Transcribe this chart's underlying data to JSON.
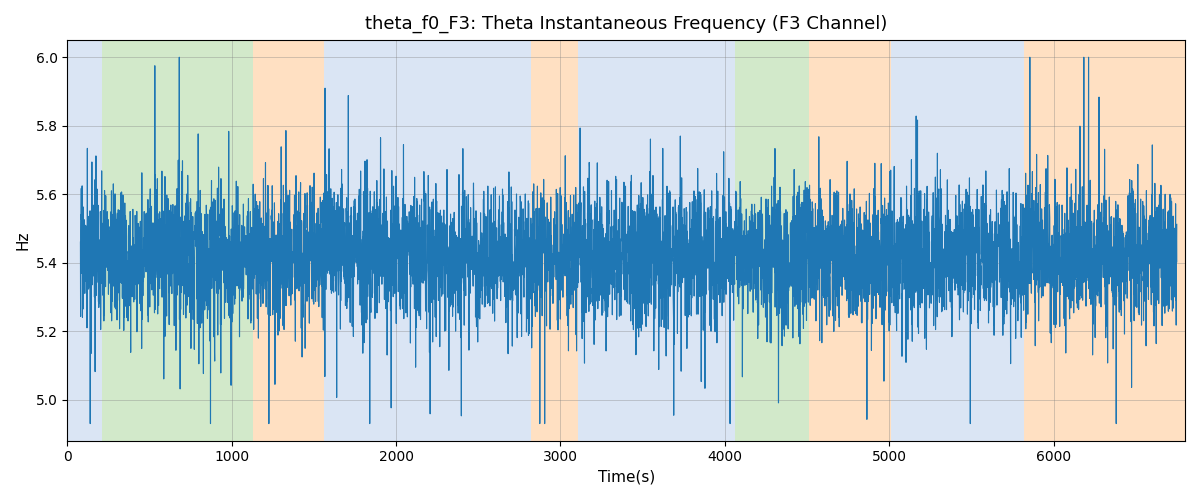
{
  "title": "theta_f0_F3: Theta Instantaneous Frequency (F3 Channel)",
  "xlabel": "Time(s)",
  "ylabel": "Hz",
  "ylim": [
    4.88,
    6.05
  ],
  "yticks": [
    5.0,
    5.2,
    5.4,
    5.6,
    5.8,
    6.0
  ],
  "xlim": [
    0,
    6800
  ],
  "xticks": [
    0,
    1000,
    2000,
    3000,
    4000,
    5000,
    6000
  ],
  "line_color": "#1f77b4",
  "line_width": 0.8,
  "bg_regions": [
    {
      "xmin": 0,
      "xmax": 210,
      "color": "#aec7e8",
      "alpha": 0.45
    },
    {
      "xmin": 210,
      "xmax": 1130,
      "color": "#90c97c",
      "alpha": 0.4
    },
    {
      "xmin": 1130,
      "xmax": 1560,
      "color": "#ffbb78",
      "alpha": 0.45
    },
    {
      "xmin": 1560,
      "xmax": 2820,
      "color": "#aec7e8",
      "alpha": 0.45
    },
    {
      "xmin": 2820,
      "xmax": 3110,
      "color": "#ffbb78",
      "alpha": 0.45
    },
    {
      "xmin": 3110,
      "xmax": 3920,
      "color": "#aec7e8",
      "alpha": 0.45
    },
    {
      "xmin": 3920,
      "xmax": 4060,
      "color": "#aec7e8",
      "alpha": 0.45
    },
    {
      "xmin": 4060,
      "xmax": 4510,
      "color": "#90c97c",
      "alpha": 0.4
    },
    {
      "xmin": 4510,
      "xmax": 5010,
      "color": "#ffbb78",
      "alpha": 0.45
    },
    {
      "xmin": 5010,
      "xmax": 5820,
      "color": "#aec7e8",
      "alpha": 0.45
    },
    {
      "xmin": 5820,
      "xmax": 6800,
      "color": "#ffbb78",
      "alpha": 0.45
    }
  ],
  "seed": 17,
  "n_points": 6500,
  "time_start": 80,
  "time_end": 6750,
  "freq_mean": 5.42,
  "noise_std": 0.1,
  "spike_prob": 0.03,
  "spike_scale": 0.25
}
